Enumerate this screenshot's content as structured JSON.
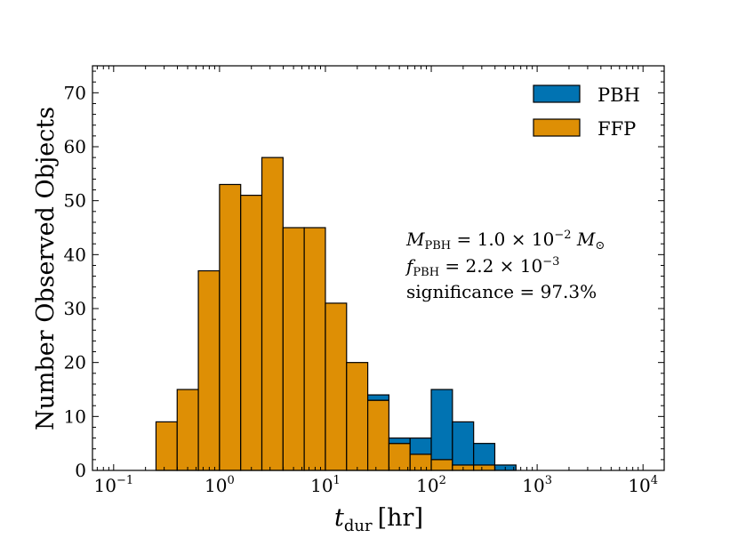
{
  "chart_data": {
    "type": "bar",
    "histogram": true,
    "stacked": true,
    "x_scale": "log",
    "bin_edges_log10": [
      -0.6,
      -0.4,
      -0.2,
      0.0,
      0.2,
      0.4,
      0.6,
      0.8,
      1.0,
      1.2,
      1.4,
      1.6,
      1.8,
      2.0,
      2.2,
      2.4,
      2.6,
      2.8,
      3.0
    ],
    "series": [
      {
        "name": "FFP",
        "color": "#de8f05",
        "values": [
          9,
          15,
          37,
          53,
          51,
          58,
          45,
          45,
          31,
          20,
          13,
          5,
          3,
          2,
          1,
          1,
          0,
          0
        ]
      },
      {
        "name": "PBH",
        "color": "#0173b2",
        "values": [
          0,
          0,
          0,
          0,
          0,
          0,
          0,
          0,
          0,
          0,
          1,
          1,
          3,
          13,
          8,
          4,
          1,
          0
        ]
      }
    ],
    "xlabel_var": "t",
    "xlabel_sub": "dur",
    "xlabel_unit": "[hr]",
    "ylabel": "Number Observed Objects",
    "xlim_log10": [
      -1.2,
      4.2
    ],
    "ylim": [
      0,
      75
    ],
    "y_ticks": [
      "0",
      "10",
      "20",
      "30",
      "40",
      "50",
      "60",
      "70"
    ],
    "x_ticks": [
      {
        "base": "10",
        "exp": "−1",
        "log": -1
      },
      {
        "base": "10",
        "exp": "0",
        "log": 0
      },
      {
        "base": "10",
        "exp": "1",
        "log": 1
      },
      {
        "base": "10",
        "exp": "2",
        "log": 2
      },
      {
        "base": "10",
        "exp": "3",
        "log": 3
      },
      {
        "base": "10",
        "exp": "4",
        "log": 4
      }
    ],
    "legend": {
      "placement": "top-right",
      "entries": [
        {
          "label": "PBH",
          "color": "#0173b2"
        },
        {
          "label": "FFP",
          "color": "#de8f05"
        }
      ]
    },
    "annotations": {
      "mass": {
        "var": "M",
        "sub": "PBH",
        "eq": " = 1.0 × 10",
        "exp": "−2",
        "unit": "M",
        "unit_sub": "⊙"
      },
      "fraction": {
        "var": "f",
        "sub": "PBH",
        "eq": " = 2.2 × 10",
        "exp": "−3"
      },
      "significance": "significance = 97.3%"
    }
  }
}
